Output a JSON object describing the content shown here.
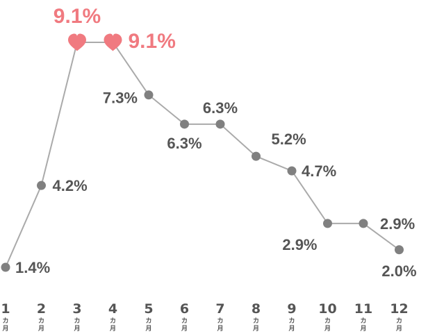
{
  "chart_data": {
    "type": "line",
    "categories": [
      "1",
      "2",
      "3",
      "4",
      "5",
      "6",
      "7",
      "8",
      "9",
      "10",
      "11",
      "12"
    ],
    "category_unit": "カ月",
    "values": [
      1.4,
      4.2,
      9.1,
      9.1,
      7.3,
      6.3,
      6.3,
      5.2,
      4.7,
      2.9,
      2.9,
      2.0
    ],
    "value_labels": [
      "1.4%",
      "4.2%",
      "9.1%",
      "9.1%",
      "7.3%",
      "6.3%",
      "6.3%",
      "5.2%",
      "4.7%",
      "2.9%",
      "2.9%",
      "2.0%"
    ],
    "highlight_indices": [
      2,
      3
    ],
    "title": "",
    "xlabel": "",
    "ylabel": "",
    "grid": false,
    "legend": "none",
    "colors": {
      "line": "#aaaaaa",
      "point": "#808080",
      "highlight": "#f07a80",
      "label": "#555555"
    },
    "marker_icons": {
      "normal": "circle",
      "highlight": "heart-icon"
    }
  }
}
